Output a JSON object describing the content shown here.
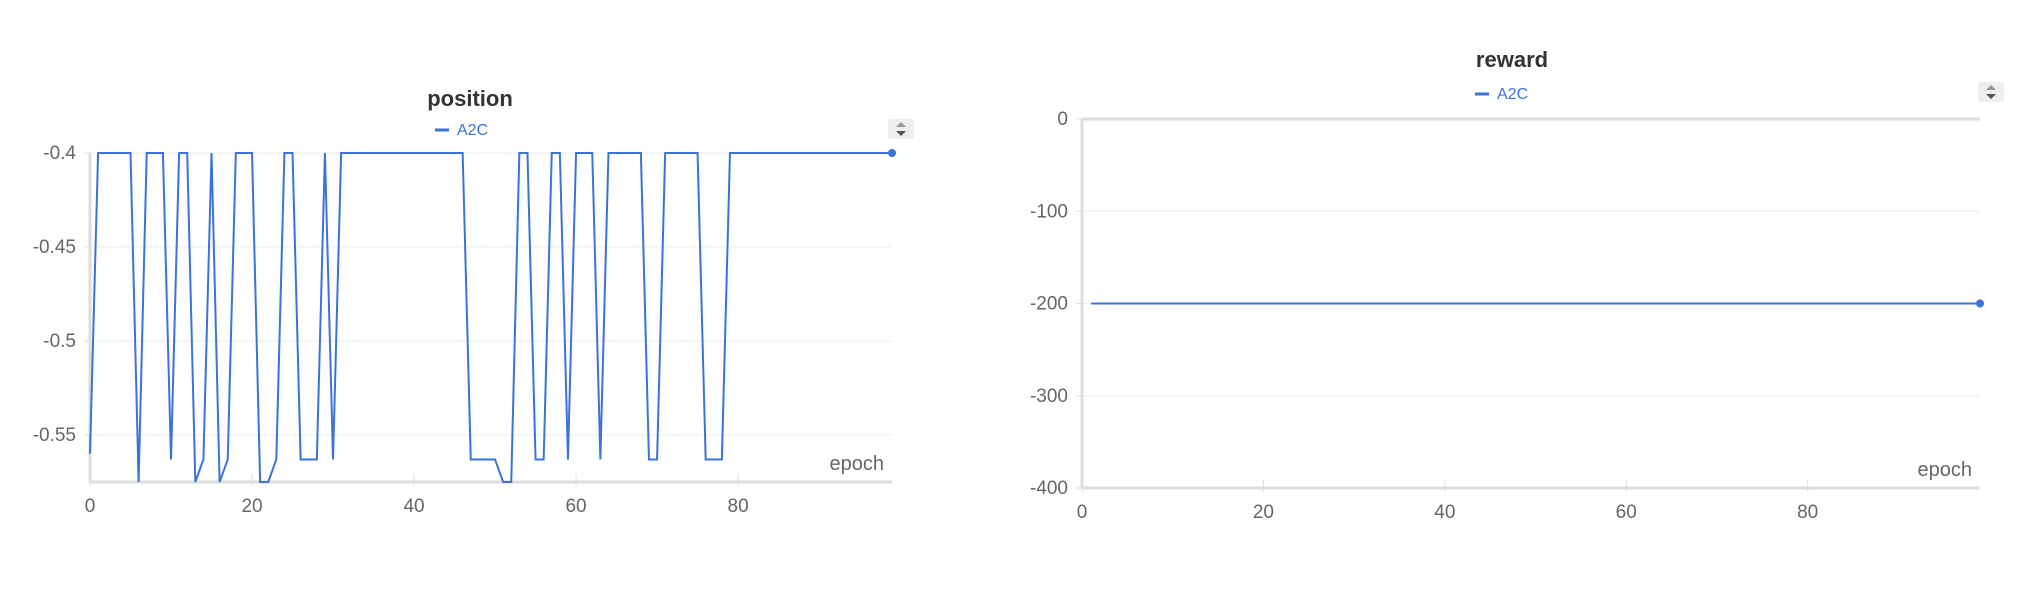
{
  "chart_data": [
    {
      "type": "line",
      "title": "position",
      "xlabel": "epoch",
      "ylabel": "",
      "legend": "top-center",
      "grid": true,
      "xlim": [
        0,
        99
      ],
      "ylim": [
        -0.575,
        -0.4
      ],
      "x_ticks": [
        "0",
        "20",
        "40",
        "60",
        "80"
      ],
      "y_ticks": [
        "-0.4",
        "-0.45",
        "-0.5",
        "-0.55"
      ],
      "color": "#3b73d9",
      "series": [
        {
          "name": "A2C",
          "x": [
            0,
            1,
            2,
            3,
            4,
            5,
            6,
            7,
            8,
            9,
            10,
            11,
            12,
            13,
            14,
            15,
            16,
            17,
            18,
            19,
            20,
            21,
            22,
            23,
            24,
            25,
            26,
            27,
            28,
            29,
            30,
            31,
            32,
            33,
            34,
            35,
            36,
            37,
            38,
            39,
            40,
            41,
            42,
            43,
            44,
            45,
            46,
            47,
            48,
            49,
            50,
            51,
            52,
            53,
            54,
            55,
            56,
            57,
            58,
            59,
            60,
            61,
            62,
            63,
            64,
            65,
            66,
            67,
            68,
            69,
            70,
            71,
            72,
            73,
            74,
            75,
            76,
            77,
            78,
            79,
            80,
            81,
            82,
            83,
            84,
            85,
            86,
            87,
            88,
            89,
            90,
            91,
            92,
            93,
            94,
            95,
            96,
            97,
            98,
            99
          ],
          "values": [
            -0.56,
            -0.4,
            -0.4,
            -0.4,
            -0.4,
            -0.4,
            -0.575,
            -0.4,
            -0.4,
            -0.4,
            -0.563,
            -0.4,
            -0.4,
            -0.575,
            -0.563,
            -0.4,
            -0.575,
            -0.563,
            -0.4,
            -0.4,
            -0.4,
            -0.575,
            -0.575,
            -0.563,
            -0.4,
            -0.4,
            -0.563,
            -0.563,
            -0.563,
            -0.4,
            -0.563,
            -0.4,
            -0.4,
            -0.4,
            -0.4,
            -0.4,
            -0.4,
            -0.4,
            -0.4,
            -0.4,
            -0.4,
            -0.4,
            -0.4,
            -0.4,
            -0.4,
            -0.4,
            -0.4,
            -0.563,
            -0.563,
            -0.563,
            -0.563,
            -0.575,
            -0.575,
            -0.4,
            -0.4,
            -0.563,
            -0.563,
            -0.4,
            -0.4,
            -0.563,
            -0.4,
            -0.4,
            -0.4,
            -0.563,
            -0.4,
            -0.4,
            -0.4,
            -0.4,
            -0.4,
            -0.563,
            -0.563,
            -0.4,
            -0.4,
            -0.4,
            -0.4,
            -0.4,
            -0.563,
            -0.563,
            -0.563,
            -0.4,
            -0.4,
            -0.4,
            -0.4,
            -0.4,
            -0.4,
            -0.4,
            -0.4,
            -0.4,
            -0.4,
            -0.4,
            -0.4,
            -0.4,
            -0.4,
            -0.4,
            -0.4,
            -0.4,
            -0.4,
            -0.4,
            -0.4,
            -0.4
          ]
        }
      ]
    },
    {
      "type": "line",
      "title": "reward",
      "xlabel": "epoch",
      "ylabel": "",
      "legend": "top-center",
      "grid": true,
      "xlim": [
        0,
        99
      ],
      "ylim": [
        -400,
        0
      ],
      "x_ticks": [
        "0",
        "20",
        "40",
        "60",
        "80"
      ],
      "y_ticks": [
        "0",
        "-100",
        "-200",
        "-300",
        "-400"
      ],
      "color": "#3b73d9",
      "series": [
        {
          "name": "A2C",
          "x": [
            1,
            99
          ],
          "values": [
            -200,
            -200
          ]
        }
      ]
    }
  ]
}
